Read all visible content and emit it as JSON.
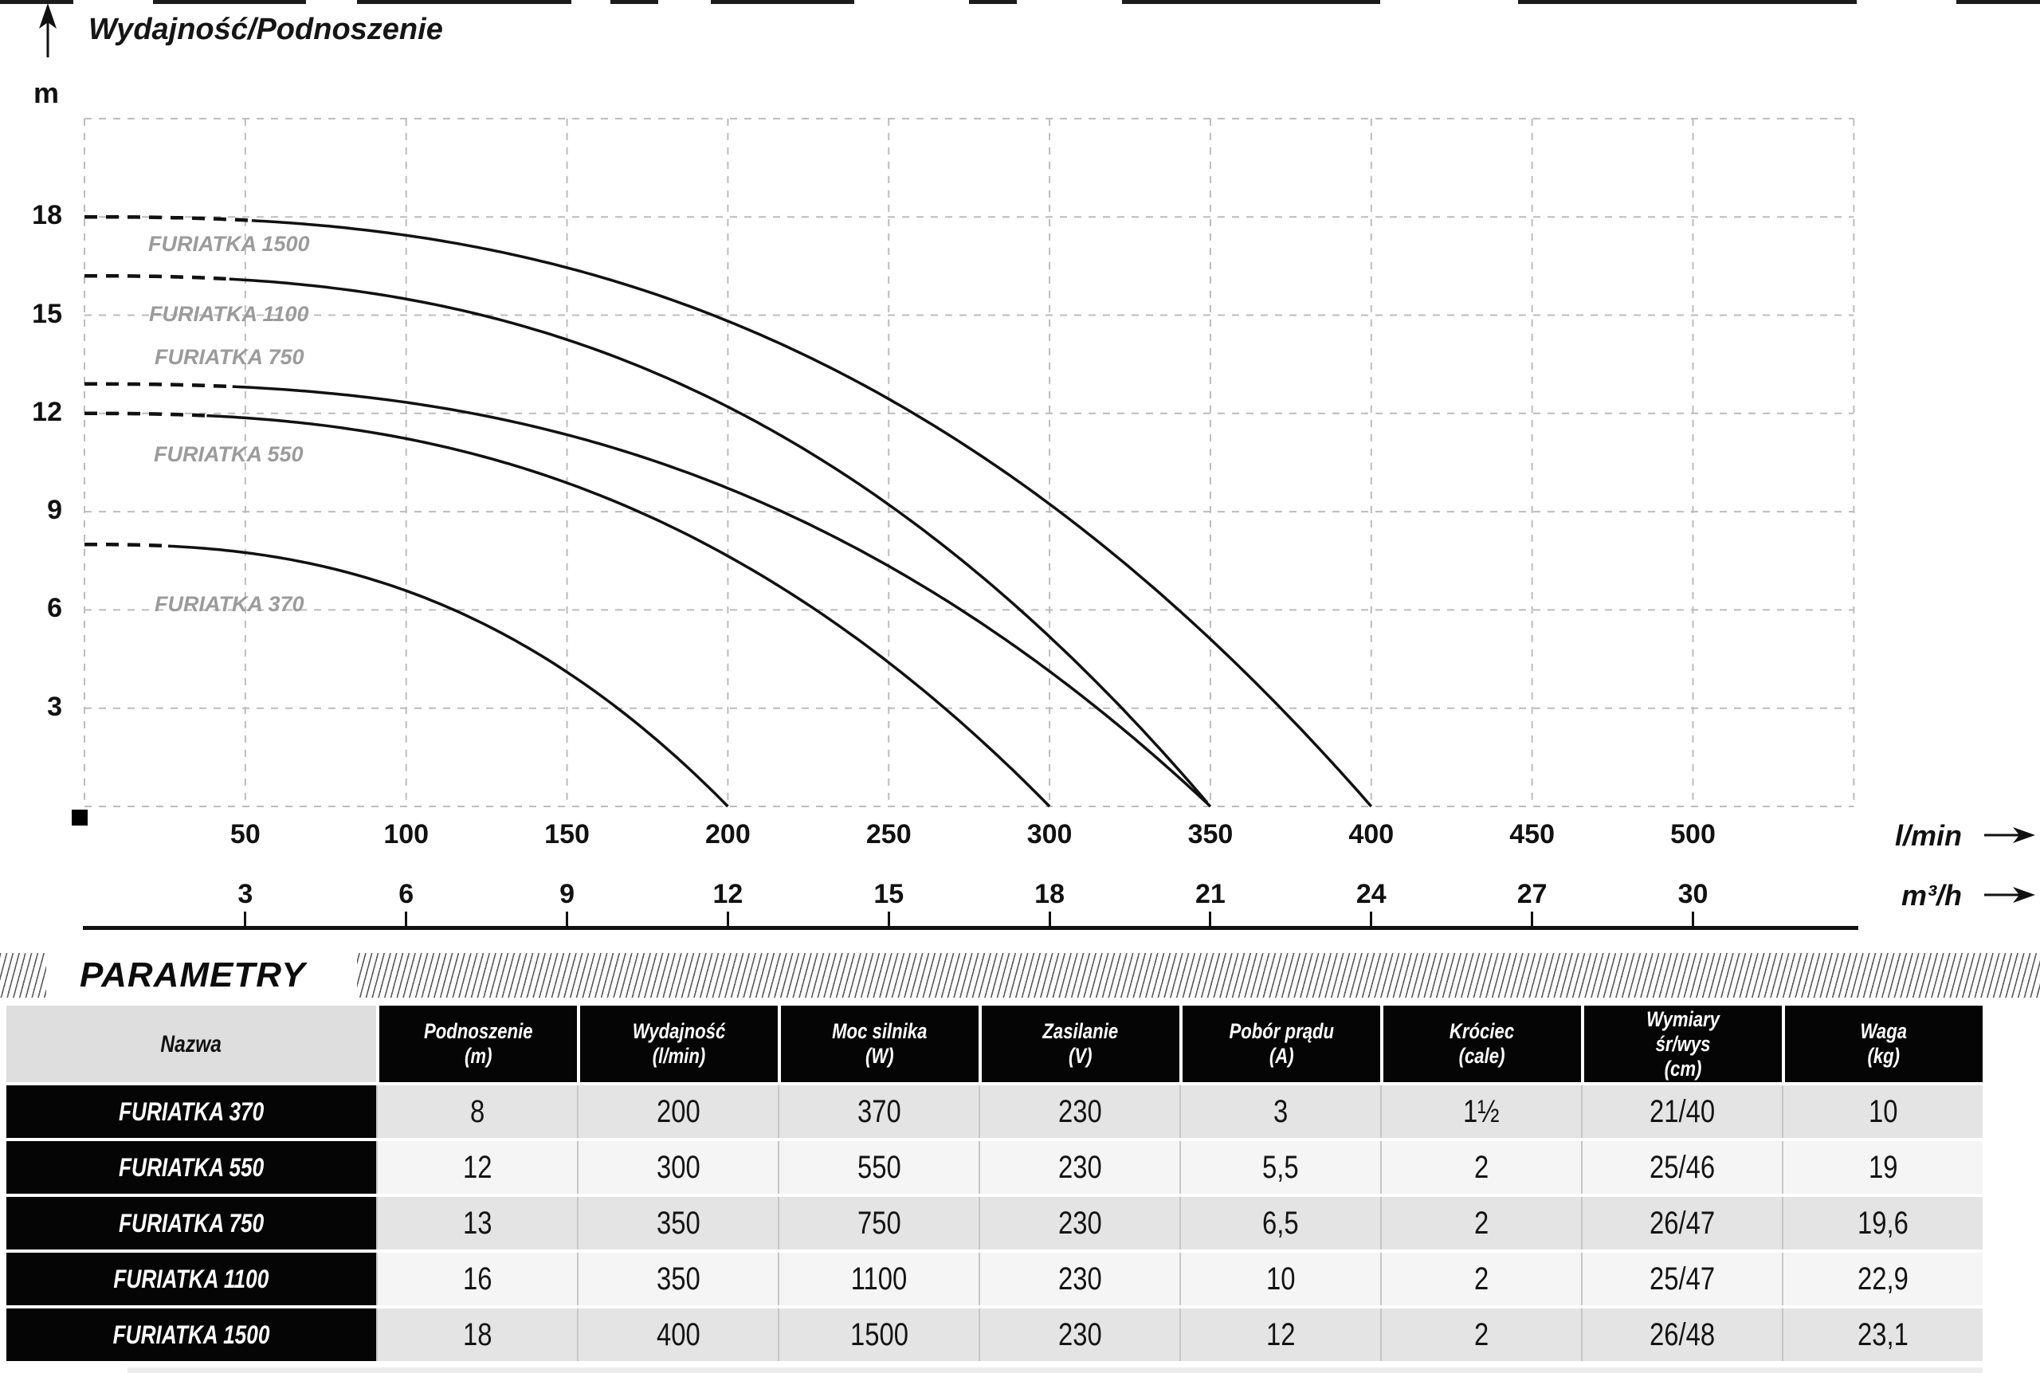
{
  "chart_data": {
    "type": "line",
    "title": "Wydajność/Podnoszenie",
    "y_axis": {
      "unit": "m",
      "ticks": [
        3,
        6,
        9,
        12,
        15,
        18
      ],
      "range": [
        0,
        21
      ]
    },
    "x_axes": [
      {
        "unit": "l/min",
        "ticks": [
          50,
          100,
          150,
          200,
          250,
          300,
          350,
          400,
          450,
          500
        ]
      },
      {
        "unit": "m³/h",
        "ticks": [
          3,
          6,
          9,
          12,
          15,
          18,
          21,
          24,
          27,
          30
        ]
      }
    ],
    "grid": true,
    "legend_position": "labels-on-curves",
    "series": [
      {
        "name": "FURIATKA 1500",
        "max_head_m": 18,
        "max_flow_lmin": 400,
        "points_lmin_m": [
          [
            0,
            18
          ],
          [
            100,
            16.9
          ],
          [
            200,
            14.8
          ],
          [
            300,
            9.2
          ],
          [
            400,
            0
          ]
        ]
      },
      {
        "name": "FURIATKA 1100",
        "max_head_m": 16.2,
        "max_flow_lmin": 350,
        "points_lmin_m": [
          [
            0,
            16.2
          ],
          [
            90,
            15.2
          ],
          [
            175,
            13.3
          ],
          [
            260,
            8.3
          ],
          [
            350,
            0
          ]
        ]
      },
      {
        "name": "FURIATKA 750",
        "max_head_m": 12.9,
        "max_flow_lmin": 350,
        "points_lmin_m": [
          [
            0,
            12.9
          ],
          [
            90,
            12.1
          ],
          [
            175,
            10.6
          ],
          [
            260,
            6.6
          ],
          [
            350,
            0
          ]
        ]
      },
      {
        "name": "FURIATKA 550",
        "max_head_m": 12,
        "max_flow_lmin": 300,
        "points_lmin_m": [
          [
            0,
            12
          ],
          [
            75,
            11.3
          ],
          [
            150,
            9.9
          ],
          [
            225,
            6.1
          ],
          [
            300,
            0
          ]
        ]
      },
      {
        "name": "FURIATKA 370",
        "max_head_m": 8,
        "max_flow_lmin": 200,
        "points_lmin_m": [
          [
            0,
            8
          ],
          [
            50,
            7.5
          ],
          [
            100,
            6.6
          ],
          [
            150,
            4.1
          ],
          [
            200,
            0
          ]
        ]
      }
    ]
  },
  "table": {
    "section_title": "PARAMETRY",
    "headers": [
      {
        "lines": [
          "Nazwa"
        ]
      },
      {
        "lines": [
          "Podnoszenie",
          "(m)"
        ]
      },
      {
        "lines": [
          "Wydajność",
          "(l/min)"
        ]
      },
      {
        "lines": [
          "Moc silnika",
          "(W)"
        ]
      },
      {
        "lines": [
          "Zasilanie",
          "(V)"
        ]
      },
      {
        "lines": [
          "Pobór prądu",
          "(A)"
        ]
      },
      {
        "lines": [
          "Króciec",
          "(cale)"
        ]
      },
      {
        "lines": [
          "Wymiary",
          "śr/wys",
          "(cm)"
        ]
      },
      {
        "lines": [
          "Waga",
          "(kg)"
        ]
      }
    ],
    "rows": [
      {
        "name": "FURIATKA 370",
        "values": [
          "8",
          "200",
          "370",
          "230",
          "3",
          "1½",
          "21/40",
          "10"
        ]
      },
      {
        "name": "FURIATKA 550",
        "values": [
          "12",
          "300",
          "550",
          "230",
          "5,5",
          "2",
          "25/46",
          "19"
        ]
      },
      {
        "name": "FURIATKA 750",
        "values": [
          "13",
          "350",
          "750",
          "230",
          "6,5",
          "2",
          "26/47",
          "19,6"
        ]
      },
      {
        "name": "FURIATKA 1100",
        "values": [
          "16",
          "350",
          "1100",
          "230",
          "10",
          "2",
          "25/47",
          "22,9"
        ]
      },
      {
        "name": "FURIATKA 1500",
        "values": [
          "18",
          "400",
          "1500",
          "230",
          "12",
          "2",
          "26/48",
          "23,1"
        ]
      }
    ]
  }
}
